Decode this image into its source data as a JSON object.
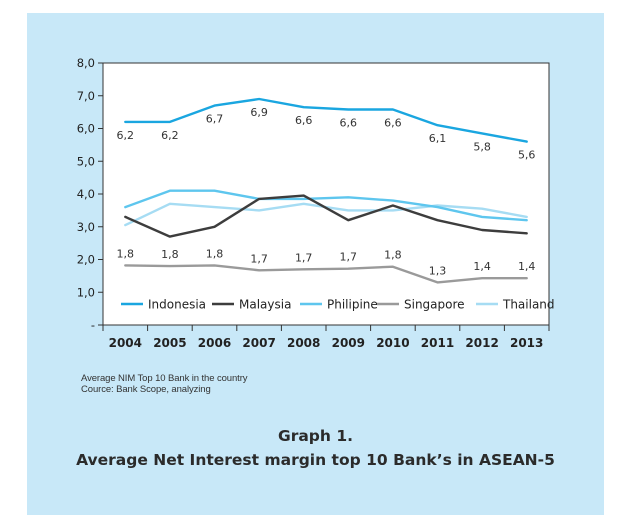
{
  "chart_data": {
    "type": "line",
    "categories": [
      "2004",
      "2005",
      "2006",
      "2007",
      "2008",
      "2009",
      "2010",
      "2011",
      "2012",
      "2013"
    ],
    "y_ticks": [
      "-",
      "1,0",
      "2,0",
      "3,0",
      "4,0",
      "5,0",
      "6,0",
      "7,0",
      "8,0"
    ],
    "ylim": [
      0,
      8
    ],
    "grid": false,
    "legend_position": "bottom-inside",
    "series": [
      {
        "name": "Indonesia",
        "color": "#1aa6e0",
        "values": [
          6.2,
          6.2,
          6.7,
          6.9,
          6.65,
          6.58,
          6.58,
          6.1,
          5.85,
          5.6
        ],
        "labels": [
          "6,2",
          "6,2",
          "6,7",
          "6,9",
          "6,6",
          "6,6",
          "6,6",
          "6,1",
          "5,8",
          "5,6"
        ]
      },
      {
        "name": "Malaysia",
        "color": "#3d3d3d",
        "values": [
          3.3,
          2.7,
          3.0,
          3.85,
          3.95,
          3.2,
          3.65,
          3.2,
          2.9,
          2.8
        ]
      },
      {
        "name": "Philipine",
        "color": "#5ec6ee",
        "values": [
          3.6,
          4.1,
          4.1,
          3.85,
          3.85,
          3.9,
          3.8,
          3.6,
          3.3,
          3.2
        ]
      },
      {
        "name": "Singapore",
        "color": "#9a9a9a",
        "values": [
          1.82,
          1.8,
          1.82,
          1.67,
          1.7,
          1.72,
          1.78,
          1.3,
          1.43,
          1.43
        ],
        "labels": [
          "1,8",
          "1,8",
          "1,8",
          "1,7",
          "1,7",
          "1,7",
          "1,8",
          "1,3",
          "1,4",
          "1,4"
        ]
      },
      {
        "name": "Thailand",
        "color": "#a6dcf3",
        "values": [
          3.05,
          3.7,
          3.6,
          3.5,
          3.7,
          3.5,
          3.5,
          3.65,
          3.55,
          3.3
        ]
      }
    ]
  },
  "notes": {
    "line1": "Average NIM Top 10 Bank in the country",
    "line2": "Cource: Bank Scope, analyzing"
  },
  "caption": {
    "line1": "Graph 1.",
    "line2": "Average Net Interest margin top 10 Bank’s in ASEAN-5"
  }
}
